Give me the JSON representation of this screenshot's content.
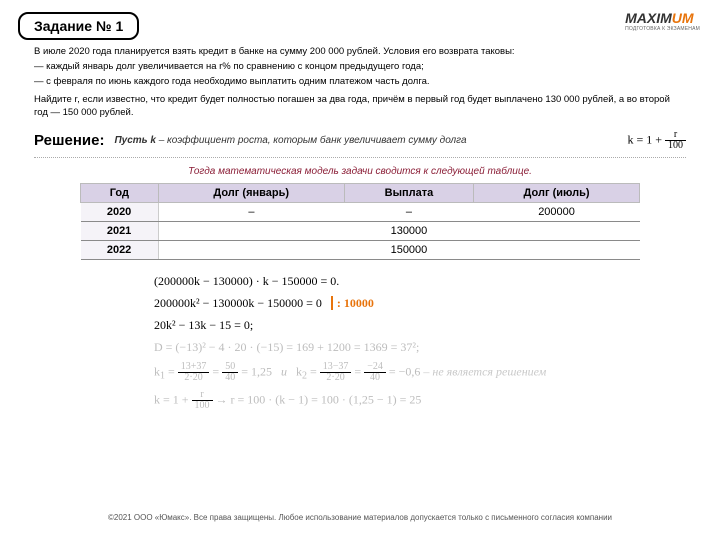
{
  "logo": {
    "text": "MAXIMUM",
    "orange_part": "UM",
    "sub": "ПОДГОТОВКА К ЭКЗАМЕНАМ"
  },
  "task_badge": "Задание № 1",
  "problem": {
    "l1": "В июле 2020 года планируется взять кредит в банке на сумму 200 000 рублей. Условия его возврата таковы:",
    "l2": "— каждый январь долг увеличивается на r% по сравнению с концом предыдущего года;",
    "l3": "— с февраля по июнь каждого года необходимо выплатить одним платежом часть долга."
  },
  "find": "Найдите r, если известно, что кредит будет полностью погашен за два года, причём в первый год будет выплачено 130 000 рублей, а во второй год — 150 000 рублей.",
  "solution": {
    "label": "Решение:",
    "hint_prefix": "Пусть k",
    "hint_rest": " – коэффициент роста, которым банк увеличивает сумму долга",
    "formula_lhs": "k = 1 +",
    "formula_num": "r",
    "formula_den": "100"
  },
  "model_note": "Тогда математическая модель задачи сводится к следующей таблице.",
  "table": {
    "headers": [
      "Год",
      "Долг (январь)",
      "Выплата",
      "Долг (июль)"
    ],
    "rows": [
      {
        "year": "2020",
        "jan": "–",
        "pay": "–",
        "jul": "200000"
      },
      {
        "year": "2021",
        "jan": "",
        "pay": "130000",
        "jul": ""
      },
      {
        "year": "2022",
        "jan": "",
        "pay": "150000",
        "jul": ""
      }
    ]
  },
  "math": {
    "eq1": "(200000k − 130000) · k − 150000 = 0.",
    "eq2a": "200000k² − 130000k − 150000 = 0",
    "eq2_div": ": 10000",
    "eq3": "20k² − 13k − 15 = 0;",
    "disc": "D = (−13)² − 4 · 20 · (−15) = 169 + 1200 = 1369 = 37²;",
    "k1_frac1_n": "13+37",
    "k1_frac1_d": "2·20",
    "k1_frac2_n": "50",
    "k1_frac2_d": "40",
    "k1_val": "= 1,25",
    "sep": "и",
    "k2_frac1_n": "13−37",
    "k2_frac1_d": "2·20",
    "k2_frac2_n": "−24",
    "k2_frac2_d": "40",
    "k2_val": "= −0,6",
    "k2_note": " – не является решением",
    "final_a": "k = 1 +",
    "final_num": "r",
    "final_den": "100",
    "final_b": "→ r = 100 · (k − 1) = 100 · (1,25 − 1) = 25"
  },
  "footer": "©2021 ООО «Юмакс». Все права защищены. Любое использование материалов допускается только с письменного согласия компании"
}
